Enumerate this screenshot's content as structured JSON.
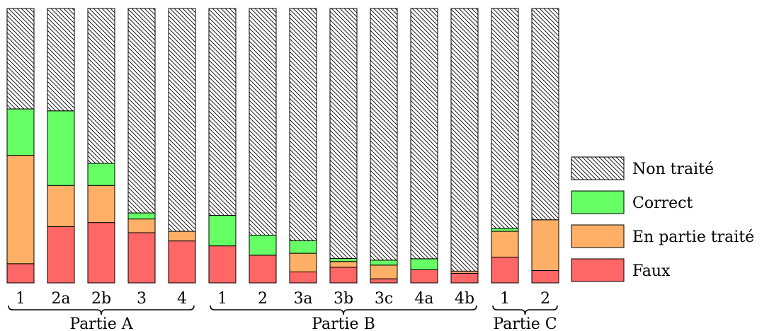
{
  "chart_data": {
    "type": "bar",
    "stacked": true,
    "normalized": true,
    "categories": [
      "1",
      "2a",
      "2b",
      "3",
      "4",
      "1",
      "2",
      "3a",
      "3b",
      "3c",
      "4a",
      "4b",
      "1",
      "2"
    ],
    "groups": [
      {
        "label": "Partie A",
        "start": 0,
        "end": 4
      },
      {
        "label": "Partie B",
        "start": 5,
        "end": 11
      },
      {
        "label": "Partie C",
        "start": 12,
        "end": 13
      }
    ],
    "series": [
      {
        "name": "Faux",
        "color": "#ff6666",
        "values": [
          0.07,
          0.205,
          0.22,
          0.183,
          0.153,
          0.135,
          0.101,
          0.04,
          0.057,
          0.015,
          0.048,
          0.035,
          0.094,
          0.045
        ]
      },
      {
        "name": "En partie traité",
        "color": "#ffb066",
        "values": [
          0.395,
          0.15,
          0.135,
          0.05,
          0.035,
          0.0,
          0.0,
          0.068,
          0.021,
          0.05,
          0.0,
          0.008,
          0.094,
          0.185
        ]
      },
      {
        "name": "Correct",
        "color": "#66ff66",
        "values": [
          0.169,
          0.272,
          0.081,
          0.022,
          0.0,
          0.111,
          0.073,
          0.046,
          0.011,
          0.018,
          0.04,
          0.0,
          0.011,
          0.0
        ]
      },
      {
        "name": "Non traité",
        "color": "#ffffff",
        "pattern": "hatch",
        "values": [
          0.366,
          0.373,
          0.564,
          0.745,
          0.812,
          0.754,
          0.826,
          0.846,
          0.911,
          0.917,
          0.912,
          0.957,
          0.801,
          0.77
        ]
      }
    ],
    "legend": {
      "placement": "right",
      "order": [
        "Non traité",
        "Correct",
        "En partie traité",
        "Faux"
      ]
    },
    "ylim": [
      0,
      1
    ],
    "grid": false
  }
}
